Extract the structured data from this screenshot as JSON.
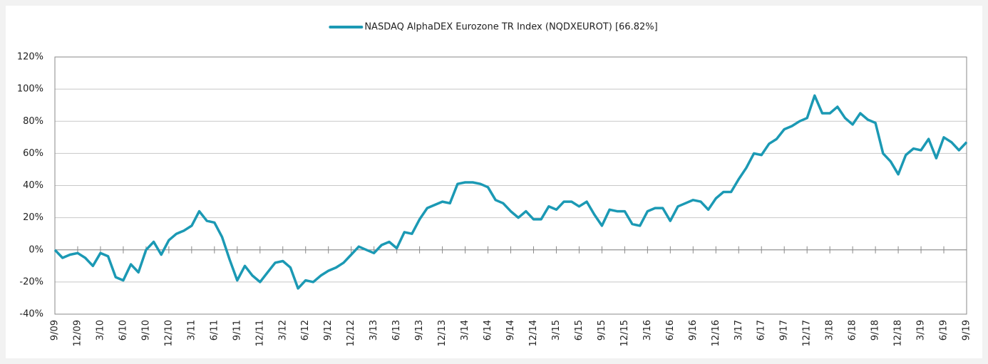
{
  "chart_data": {
    "type": "line",
    "categories": [
      "9/09",
      null,
      null,
      "12/09",
      null,
      null,
      "3/10",
      null,
      null,
      "6/10",
      null,
      null,
      "9/10",
      null,
      null,
      "12/10",
      null,
      null,
      "3/11",
      null,
      null,
      "6/11",
      null,
      null,
      "9/11",
      null,
      null,
      "12/11",
      null,
      null,
      "3/12",
      null,
      null,
      "6/12",
      null,
      null,
      "9/12",
      null,
      null,
      "12/12",
      null,
      null,
      "3/13",
      null,
      null,
      "6/13",
      null,
      null,
      "9/13",
      null,
      null,
      "12/13",
      null,
      null,
      "3/14",
      null,
      null,
      "6/14",
      null,
      null,
      "9/14",
      null,
      null,
      "12/14",
      null,
      null,
      "3/15",
      null,
      null,
      "6/15",
      null,
      null,
      "9/15",
      null,
      null,
      "12/15",
      null,
      null,
      "3/16",
      null,
      null,
      "6/16",
      null,
      null,
      "9/16",
      null,
      null,
      "12/16",
      null,
      null,
      "3/17",
      null,
      null,
      "6/17",
      null,
      null,
      "9/17",
      null,
      null,
      "12/17",
      null,
      null,
      "3/18",
      null,
      null,
      "6/18",
      null,
      null,
      "9/18",
      null,
      null,
      "12/18",
      null,
      null,
      "3/19",
      null,
      null,
      "6/19",
      null,
      null,
      "9/19"
    ],
    "series": [
      {
        "name": "NASDAQ AlphaDEX Eurozone TR Index (NQDXEUROT) [66.82%]",
        "color": "#1b99b4",
        "values": [
          0,
          -5,
          -3,
          -2,
          -5,
          -10,
          -2,
          -4,
          -17,
          -19,
          -9,
          -14,
          0,
          5,
          -3,
          6,
          10,
          12,
          15,
          24,
          18,
          17,
          8,
          -6,
          -19,
          -10,
          -16,
          -20,
          -14,
          -8,
          -7,
          -11,
          -24,
          -19,
          -20,
          -16,
          -13,
          -11,
          -8,
          -3,
          2,
          0,
          -2,
          3,
          5,
          1,
          11,
          10,
          19,
          26,
          28,
          30,
          29,
          41,
          42,
          42,
          41,
          39,
          31,
          29,
          24,
          20,
          24,
          19,
          19,
          27,
          25,
          30,
          30,
          27,
          30,
          22,
          15,
          25,
          24,
          24,
          16,
          15,
          24,
          26,
          26,
          18,
          27,
          29,
          31,
          30,
          25,
          32,
          36,
          36,
          44,
          51,
          60,
          59,
          66,
          69,
          75,
          77,
          80,
          82,
          96,
          85,
          85,
          89,
          82,
          78,
          85,
          81,
          79,
          60,
          55,
          47,
          59,
          63,
          62,
          69,
          57,
          70,
          67,
          62,
          67
        ]
      }
    ],
    "ylim": [
      -40,
      120
    ],
    "yticks": [
      {
        "value": -40,
        "label": "-40%"
      },
      {
        "value": -20,
        "label": "-20%"
      },
      {
        "value": 0,
        "label": "0%"
      },
      {
        "value": 20,
        "label": "20%"
      },
      {
        "value": 40,
        "label": "40%"
      },
      {
        "value": 60,
        "label": "60%"
      },
      {
        "value": 80,
        "label": "80%"
      },
      {
        "value": 100,
        "label": "100%"
      },
      {
        "value": 120,
        "label": "120%"
      }
    ],
    "grid": true,
    "legend": "top"
  }
}
